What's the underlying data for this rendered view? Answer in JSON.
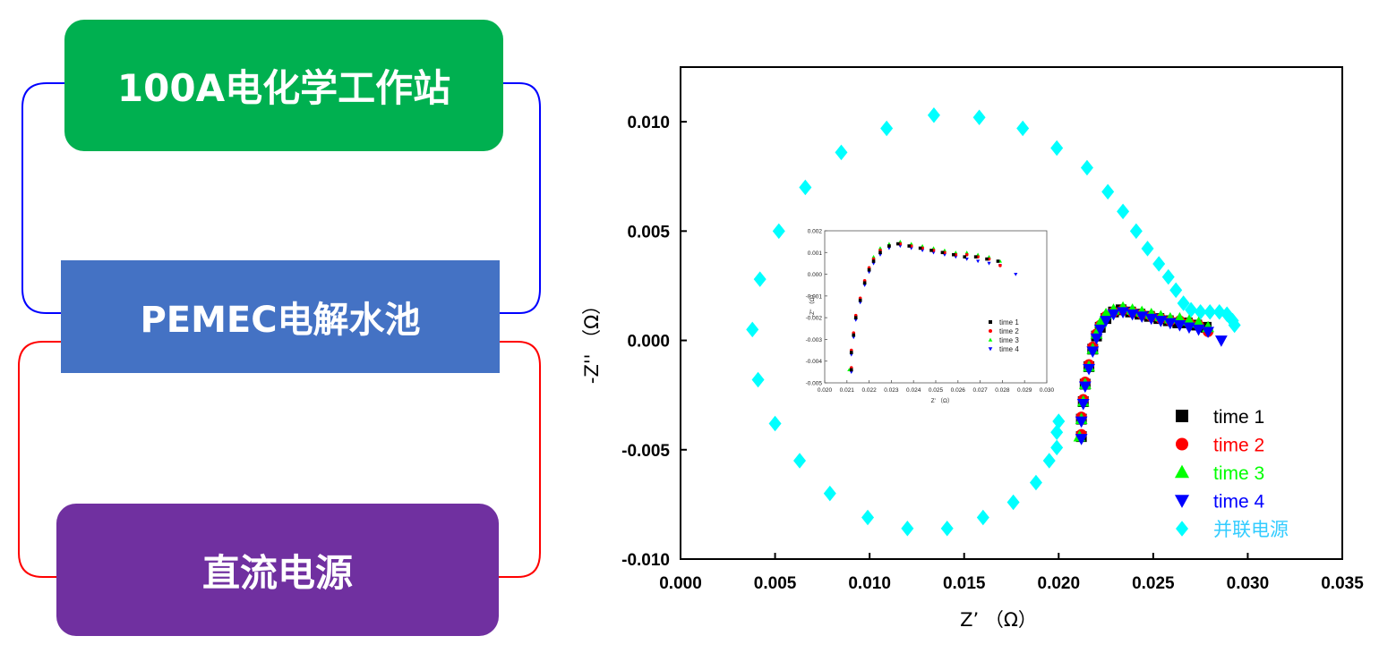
{
  "diagram": {
    "nodes": [
      {
        "id": "workstation",
        "label": "100A电化学工作站",
        "color": "#00B050"
      },
      {
        "id": "electrolyzer",
        "label": "PEMEC电解水池",
        "color": "#4472C4"
      },
      {
        "id": "power",
        "label": "直流电源",
        "color": "#7030A0"
      }
    ],
    "connectors": [
      {
        "from": "workstation",
        "to": "electrolyzer",
        "color": "#0000FF"
      },
      {
        "from": "electrolyzer",
        "to": "power",
        "color": "#FF0000"
      }
    ]
  },
  "chart_data": [
    {
      "type": "scatter",
      "title": "",
      "xlabel": "Z’ （Ω）",
      "ylabel": "-Z'' （Ω）",
      "xlim": [
        0,
        0.035
      ],
      "ylim": [
        -0.01,
        0.0125
      ],
      "xticks": [
        "0.000",
        "0.005",
        "0.010",
        "0.015",
        "0.020",
        "0.025",
        "0.030",
        "0.035"
      ],
      "yticks": [
        "-0.010",
        "-0.005",
        "0.000",
        "0.005",
        "0.010"
      ],
      "legend_position": "bottom-right",
      "series": [
        {
          "name": "time 1",
          "color": "#000000",
          "marker": "square",
          "points": [
            [
              0.0212,
              -0.0044
            ],
            [
              0.0212,
              -0.0036
            ],
            [
              0.0213,
              -0.0028
            ],
            [
              0.0214,
              -0.002
            ],
            [
              0.0216,
              -0.0012
            ],
            [
              0.0218,
              -0.0004
            ],
            [
              0.022,
              0.0002
            ],
            [
              0.0222,
              0.0006
            ],
            [
              0.0225,
              0.001
            ],
            [
              0.0229,
              0.0013
            ],
            [
              0.0233,
              0.0014
            ],
            [
              0.0238,
              0.0013
            ],
            [
              0.0243,
              0.0012
            ],
            [
              0.0248,
              0.0011
            ],
            [
              0.0253,
              0.001
            ],
            [
              0.0258,
              0.0009
            ],
            [
              0.0263,
              0.0008
            ],
            [
              0.0268,
              0.0008
            ],
            [
              0.0273,
              0.0007
            ],
            [
              0.0278,
              0.0006
            ]
          ]
        },
        {
          "name": "time 2",
          "color": "#FF0000",
          "marker": "circle",
          "points": [
            [
              0.0212,
              -0.0043
            ],
            [
              0.0212,
              -0.0035
            ],
            [
              0.0213,
              -0.0027
            ],
            [
              0.0214,
              -0.0019
            ],
            [
              0.0216,
              -0.0011
            ],
            [
              0.0218,
              -0.0003
            ],
            [
              0.022,
              0.0003
            ],
            [
              0.0222,
              0.0007
            ],
            [
              0.0225,
              0.0011
            ],
            [
              0.0229,
              0.0013
            ],
            [
              0.0234,
              0.0014
            ],
            [
              0.0239,
              0.0013
            ],
            [
              0.0244,
              0.0012
            ],
            [
              0.0249,
              0.0011
            ],
            [
              0.0254,
              0.001
            ],
            [
              0.0259,
              0.0009
            ],
            [
              0.0264,
              0.0009
            ],
            [
              0.0269,
              0.0008
            ],
            [
              0.0274,
              0.0007
            ],
            [
              0.0279,
              0.0004
            ]
          ]
        },
        {
          "name": "time 3",
          "color": "#00FF00",
          "marker": "triangle-up",
          "points": [
            [
              0.0211,
              -0.0044
            ],
            [
              0.0212,
              -0.0036
            ],
            [
              0.0213,
              -0.0028
            ],
            [
              0.0214,
              -0.002
            ],
            [
              0.0216,
              -0.0012
            ],
            [
              0.0218,
              -0.0004
            ],
            [
              0.022,
              0.0003
            ],
            [
              0.0222,
              0.0008
            ],
            [
              0.0225,
              0.0012
            ],
            [
              0.0229,
              0.0014
            ],
            [
              0.0234,
              0.0015
            ],
            [
              0.0239,
              0.0014
            ],
            [
              0.0244,
              0.0013
            ],
            [
              0.0249,
              0.0012
            ],
            [
              0.0254,
              0.0011
            ],
            [
              0.0259,
              0.001
            ],
            [
              0.0264,
              0.001
            ],
            [
              0.0269,
              0.0009
            ],
            [
              0.0274,
              0.0008
            ],
            [
              0.0279,
              0.0006
            ]
          ]
        },
        {
          "name": "time 4",
          "color": "#0000FF",
          "marker": "triangle-down",
          "points": [
            [
              0.0212,
              -0.0045
            ],
            [
              0.0212,
              -0.0037
            ],
            [
              0.0213,
              -0.0029
            ],
            [
              0.0214,
              -0.0021
            ],
            [
              0.0216,
              -0.0013
            ],
            [
              0.0218,
              -0.0005
            ],
            [
              0.022,
              0.0001
            ],
            [
              0.0222,
              0.0005
            ],
            [
              0.0225,
              0.0009
            ],
            [
              0.0229,
              0.0012
            ],
            [
              0.0234,
              0.0013
            ],
            [
              0.0239,
              0.0012
            ],
            [
              0.0244,
              0.0011
            ],
            [
              0.0249,
              0.001
            ],
            [
              0.0254,
              0.0009
            ],
            [
              0.0259,
              0.0008
            ],
            [
              0.0264,
              0.0007
            ],
            [
              0.0269,
              0.0006
            ],
            [
              0.0274,
              0.0005
            ],
            [
              0.0279,
              0.0004
            ],
            [
              0.0286,
              0.0
            ]
          ]
        },
        {
          "name": "并联电源",
          "color": "#00FFFF",
          "marker": "diamond",
          "points": [
            [
              0.0038,
              0.0005
            ],
            [
              0.0042,
              0.0028
            ],
            [
              0.0052,
              0.005
            ],
            [
              0.0066,
              0.007
            ],
            [
              0.0085,
              0.0086
            ],
            [
              0.0109,
              0.0097
            ],
            [
              0.0134,
              0.0103
            ],
            [
              0.0158,
              0.0102
            ],
            [
              0.0181,
              0.0097
            ],
            [
              0.0199,
              0.0088
            ],
            [
              0.0215,
              0.0079
            ],
            [
              0.0226,
              0.0068
            ],
            [
              0.0234,
              0.0059
            ],
            [
              0.0241,
              0.005
            ],
            [
              0.0247,
              0.0042
            ],
            [
              0.0253,
              0.0035
            ],
            [
              0.0258,
              0.0029
            ],
            [
              0.0262,
              0.0023
            ],
            [
              0.0266,
              0.0017
            ],
            [
              0.027,
              0.0014
            ],
            [
              0.0275,
              0.0013
            ],
            [
              0.028,
              0.0013
            ],
            [
              0.0285,
              0.0013
            ],
            [
              0.0289,
              0.0012
            ],
            [
              0.0292,
              0.0009
            ],
            [
              0.0293,
              0.0007
            ],
            [
              0.0041,
              -0.0018
            ],
            [
              0.005,
              -0.0038
            ],
            [
              0.0063,
              -0.0055
            ],
            [
              0.0079,
              -0.007
            ],
            [
              0.0099,
              -0.0081
            ],
            [
              0.012,
              -0.0086
            ],
            [
              0.0141,
              -0.0086
            ],
            [
              0.016,
              -0.0081
            ],
            [
              0.0176,
              -0.0074
            ],
            [
              0.0188,
              -0.0065
            ],
            [
              0.0195,
              -0.0055
            ],
            [
              0.0199,
              -0.0049
            ],
            [
              0.0199,
              -0.0042
            ],
            [
              0.02,
              -0.0037
            ]
          ]
        }
      ]
    },
    {
      "type": "scatter",
      "title": "",
      "xlabel": "Z’ （Ω）",
      "ylabel": "-Z'' （Ω）",
      "xlim": [
        0.02,
        0.03
      ],
      "ylim": [
        -0.005,
        0.002
      ],
      "xticks": [
        "0.020",
        "0.021",
        "0.022",
        "0.023",
        "0.024",
        "0.025",
        "0.026",
        "0.027",
        "0.028",
        "0.029",
        "0.030"
      ],
      "yticks": [
        "-0.005",
        "-0.004",
        "-0.003",
        "-0.002",
        "-0.001",
        "0.000",
        "0.001",
        "0.002"
      ],
      "legend_position": "bottom-right",
      "series_names": [
        "time 1",
        "time 2",
        "time 3",
        "time 4"
      ]
    }
  ]
}
